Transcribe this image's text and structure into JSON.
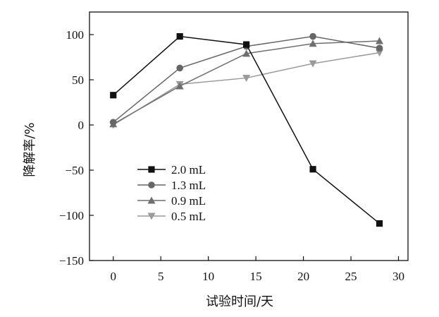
{
  "chart_data": {
    "type": "line",
    "xlabel": "试验时间/天",
    "ylabel": "降解率/%",
    "xlim": [
      -2.5,
      31
    ],
    "ylim": [
      -150,
      125
    ],
    "xticks": [
      0,
      5,
      10,
      15,
      20,
      25,
      30
    ],
    "yticks": [
      -150,
      -100,
      -50,
      0,
      50,
      100
    ],
    "xtick_labels": [
      "0",
      "5",
      "10",
      "15",
      "20",
      "25",
      "30"
    ],
    "ytick_labels": [
      "−150",
      "−100",
      "−50",
      "0",
      "50",
      "100"
    ],
    "grid": false,
    "legend_position": "lower-left",
    "series": [
      {
        "name": "2.0 mL",
        "marker": "square",
        "color": "#111111",
        "x": [
          0,
          7,
          14,
          21,
          28
        ],
        "y": [
          33,
          98,
          89,
          -49,
          -109
        ]
      },
      {
        "name": "1.3 mL",
        "marker": "circle",
        "color": "#666666",
        "x": [
          0,
          7,
          14,
          21,
          28
        ],
        "y": [
          3,
          63,
          87,
          98,
          85
        ]
      },
      {
        "name": "0.9 mL",
        "marker": "triangle-up",
        "color": "#6f6f6f",
        "x": [
          0,
          7,
          14,
          21,
          28
        ],
        "y": [
          1,
          43,
          79,
          90,
          93
        ]
      },
      {
        "name": "0.5 mL",
        "marker": "triangle-down",
        "color": "#9a9a9a",
        "x": [
          0,
          7,
          14,
          21,
          28
        ],
        "y": [
          0,
          45,
          52,
          68,
          80
        ]
      }
    ]
  }
}
